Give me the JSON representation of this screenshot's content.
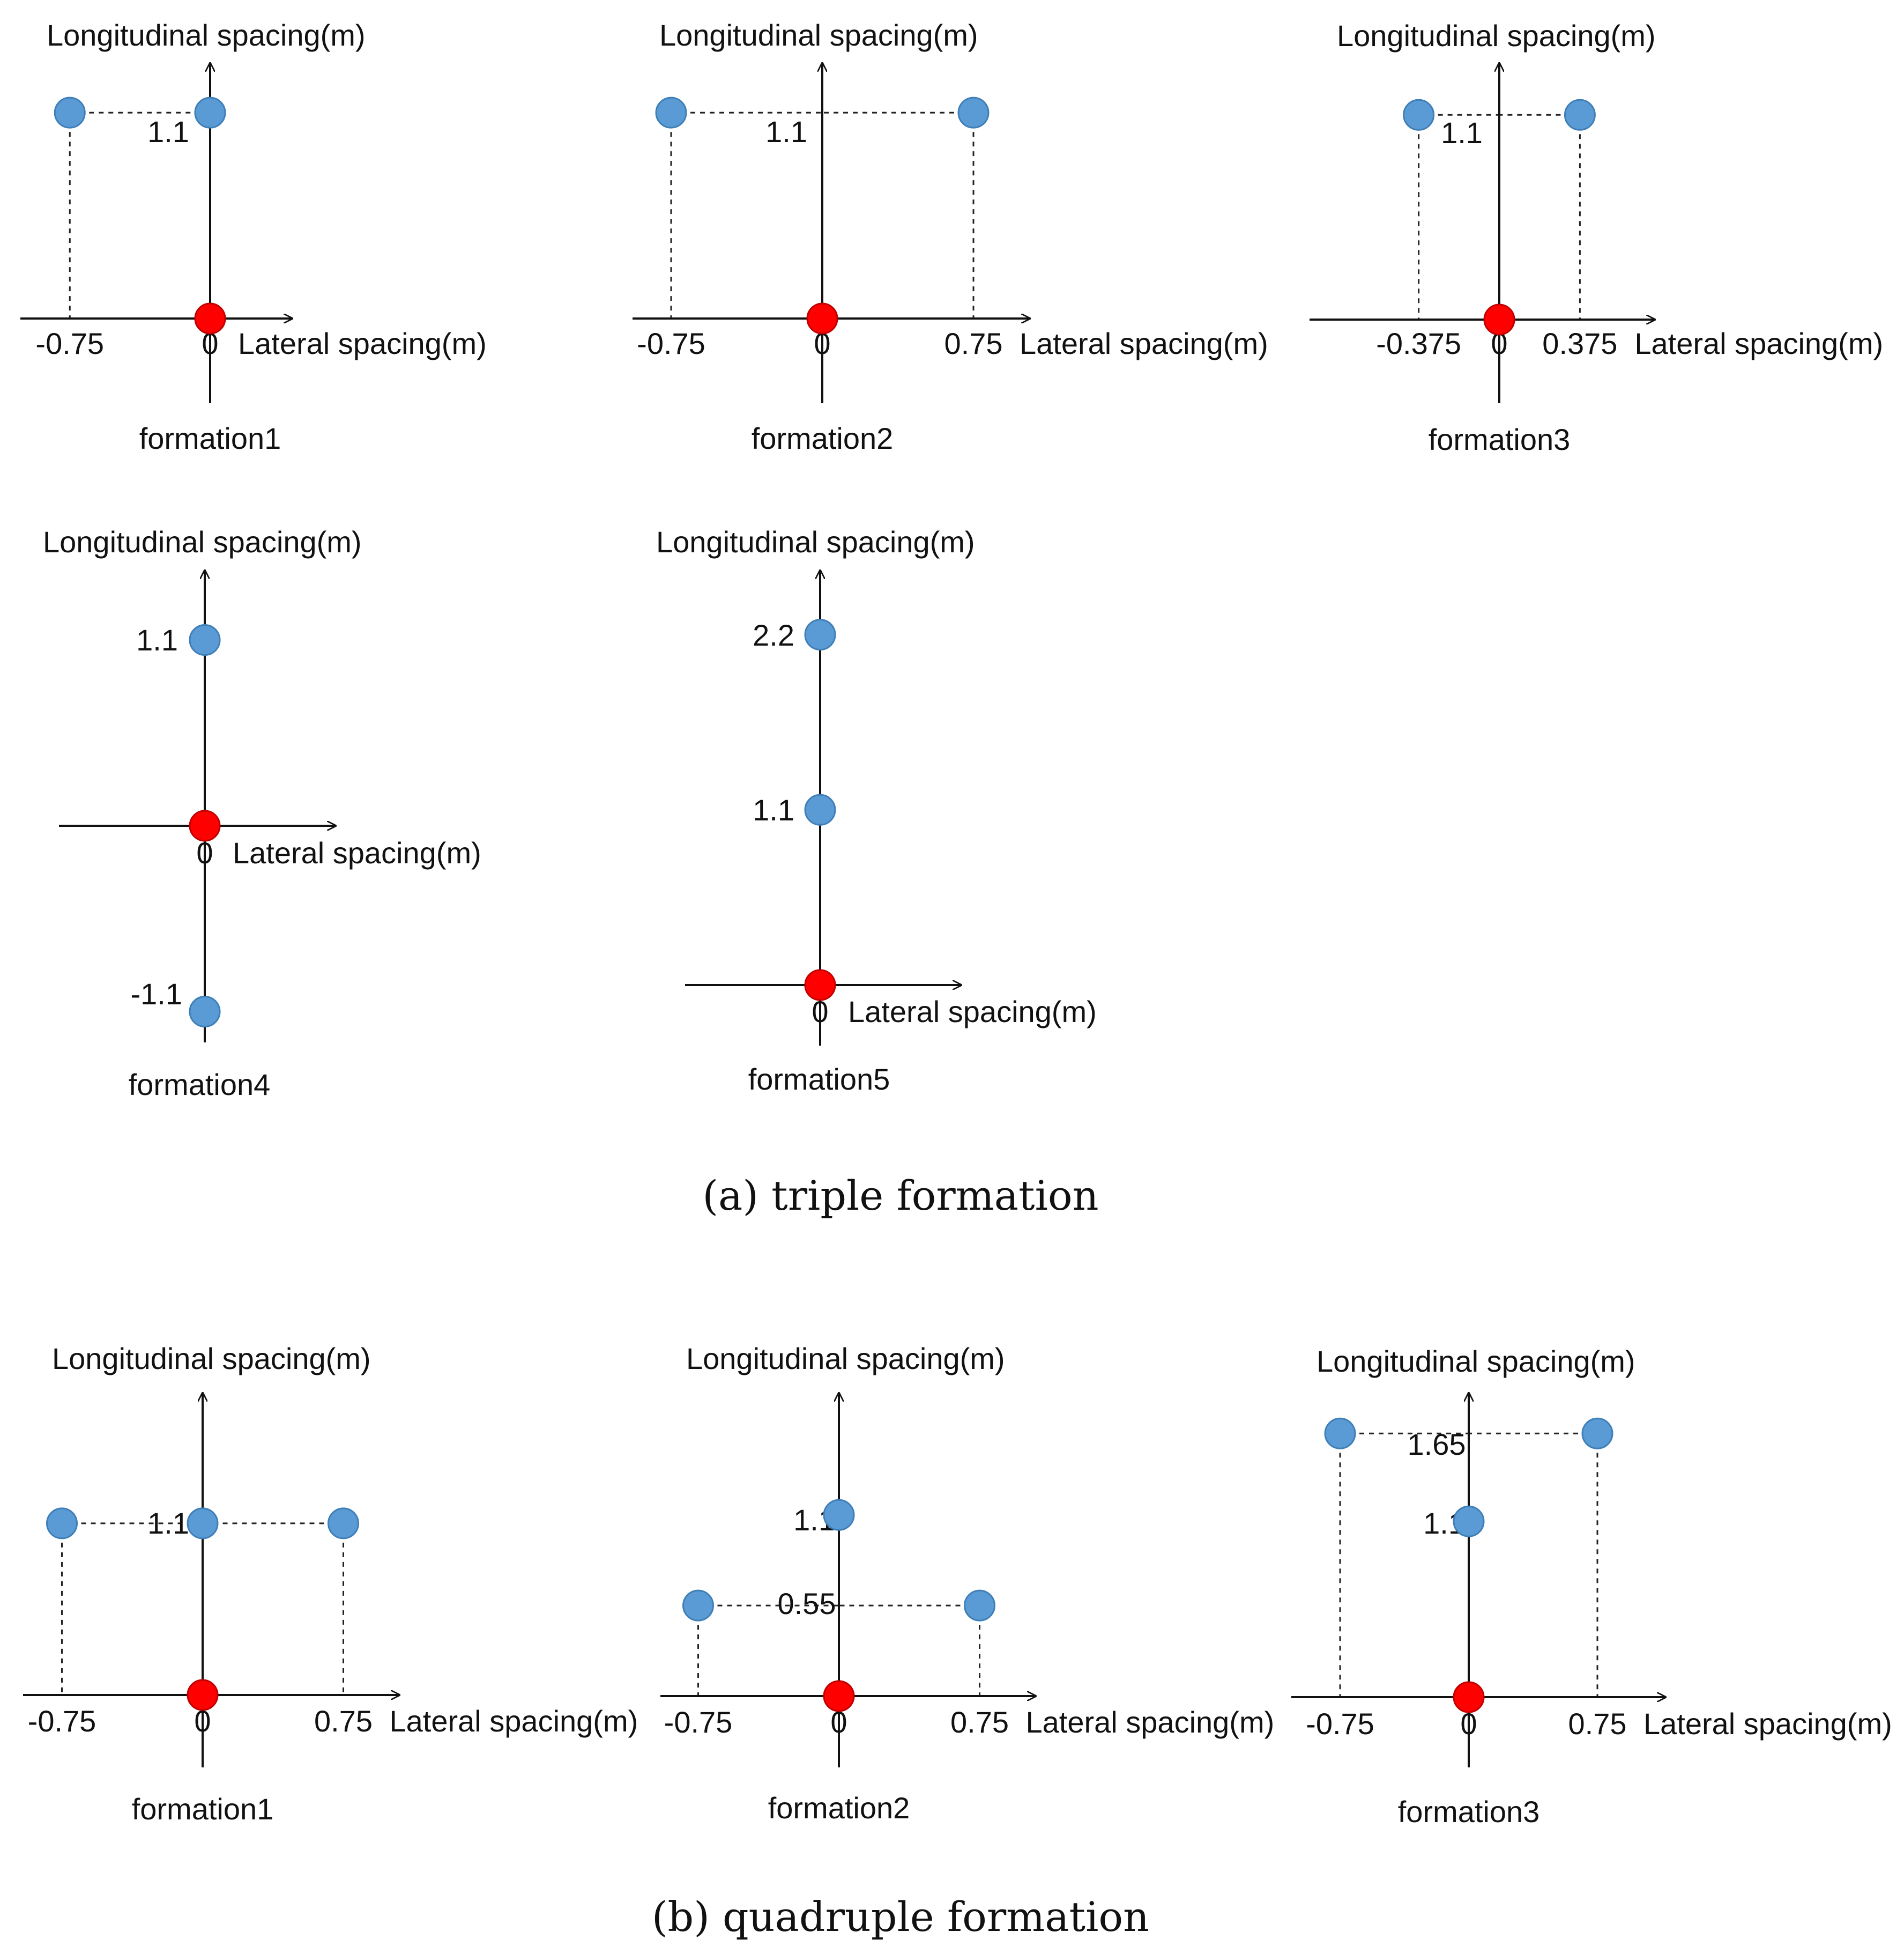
{
  "colors": {
    "follower": "#5b9bd5",
    "follower_stroke": "#3f7fb8",
    "leader": "#ff0000",
    "leader_stroke": "#c00000",
    "axis": "#111111"
  },
  "chart_data": [
    {
      "type": "scatter",
      "group": "triple",
      "title": "formation1",
      "xlabel": "Lateral spacing(m)",
      "ylabel": "Longitudinal spacing(m)",
      "x_ticks": [
        "-0.75",
        "0"
      ],
      "value_labels": [
        "1.1"
      ],
      "leader": {
        "x": 0,
        "y": 0
      },
      "points": [
        {
          "x": -0.75,
          "y": 1.1
        },
        {
          "x": 0,
          "y": 1.1
        }
      ]
    },
    {
      "type": "scatter",
      "group": "triple",
      "title": "formation2",
      "xlabel": "Lateral spacing(m)",
      "ylabel": "Longitudinal spacing(m)",
      "x_ticks": [
        "-0.75",
        "0",
        "0.75"
      ],
      "value_labels": [
        "1.1"
      ],
      "leader": {
        "x": 0,
        "y": 0
      },
      "points": [
        {
          "x": -0.75,
          "y": 1.1
        },
        {
          "x": 0.75,
          "y": 1.1
        }
      ]
    },
    {
      "type": "scatter",
      "group": "triple",
      "title": "formation3",
      "xlabel": "Lateral spacing(m)",
      "ylabel": "Longitudinal spacing(m)",
      "x_ticks": [
        "-0.375",
        "0",
        "0.375"
      ],
      "value_labels": [
        "1.1"
      ],
      "leader": {
        "x": 0,
        "y": 0
      },
      "points": [
        {
          "x": -0.375,
          "y": 1.1
        },
        {
          "x": 0.375,
          "y": 1.1
        }
      ]
    },
    {
      "type": "scatter",
      "group": "triple",
      "title": "formation4",
      "xlabel": "Lateral spacing(m)",
      "ylabel": "Longitudinal spacing(m)",
      "x_ticks": [
        "0"
      ],
      "value_labels": [
        "1.1",
        "-1.1"
      ],
      "leader": {
        "x": 0,
        "y": 0
      },
      "points": [
        {
          "x": 0,
          "y": 1.1
        },
        {
          "x": 0,
          "y": -1.1
        }
      ]
    },
    {
      "type": "scatter",
      "group": "triple",
      "title": "formation5",
      "xlabel": "Lateral spacing(m)",
      "ylabel": "Longitudinal spacing(m)",
      "x_ticks": [
        "0"
      ],
      "value_labels": [
        "2.2",
        "1.1"
      ],
      "leader": {
        "x": 0,
        "y": 0
      },
      "points": [
        {
          "x": 0,
          "y": 2.2
        },
        {
          "x": 0,
          "y": 1.1
        }
      ]
    },
    {
      "type": "scatter",
      "group": "quadruple",
      "title": "formation1",
      "xlabel": "Lateral spacing(m)",
      "ylabel": "Longitudinal spacing(m)",
      "x_ticks": [
        "-0.75",
        "0",
        "0.75"
      ],
      "value_labels": [
        "1.1"
      ],
      "leader": {
        "x": 0,
        "y": 0
      },
      "points": [
        {
          "x": -0.75,
          "y": 1.1
        },
        {
          "x": 0,
          "y": 1.1
        },
        {
          "x": 0.75,
          "y": 1.1
        }
      ]
    },
    {
      "type": "scatter",
      "group": "quadruple",
      "title": "formation2",
      "xlabel": "Lateral spacing(m)",
      "ylabel": "Longitudinal spacing(m)",
      "x_ticks": [
        "-0.75",
        "0",
        "0.75"
      ],
      "value_labels": [
        "1.1",
        "0.55"
      ],
      "leader": {
        "x": 0,
        "y": 0
      },
      "points": [
        {
          "x": 0,
          "y": 1.1
        },
        {
          "x": -0.75,
          "y": 0.55
        },
        {
          "x": 0.75,
          "y": 0.55
        }
      ]
    },
    {
      "type": "scatter",
      "group": "quadruple",
      "title": "formation3",
      "xlabel": "Lateral spacing(m)",
      "ylabel": "Longitudinal spacing(m)",
      "x_ticks": [
        "-0.75",
        "0",
        "0.75"
      ],
      "value_labels": [
        "1.65",
        "1.1"
      ],
      "leader": {
        "x": 0,
        "y": 0
      },
      "points": [
        {
          "x": -0.75,
          "y": 1.65
        },
        {
          "x": 0.75,
          "y": 1.65
        },
        {
          "x": 0,
          "y": 1.1
        }
      ]
    }
  ],
  "captions": {
    "triple": "(a) triple formation",
    "quadruple": "(b) quadruple formation"
  }
}
